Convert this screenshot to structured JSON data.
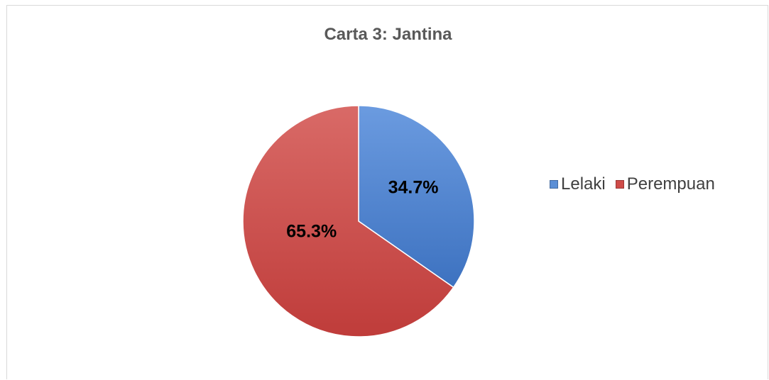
{
  "chart_data": {
    "type": "pie",
    "title": "Carta 3: Jantina",
    "categories": [
      "Lelaki",
      "Perempuan"
    ],
    "values": [
      34.7,
      65.3
    ],
    "labels": [
      "34.7%",
      "65.3%"
    ],
    "colors": [
      "#5b8fd6",
      "#cf4b48"
    ],
    "legend_position": "right"
  }
}
